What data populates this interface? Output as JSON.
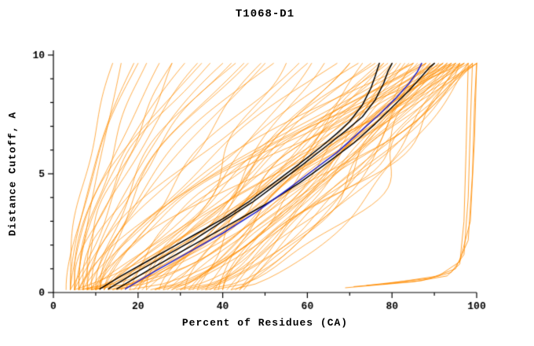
{
  "chart_data": {
    "type": "line",
    "title": "T1068-D1",
    "xlabel": "Percent of Residues (CA)",
    "ylabel": "Distance Cutoff, A",
    "xlim": [
      0,
      100
    ],
    "ylim": [
      0,
      10
    ],
    "x_ticks": [
      0,
      20,
      40,
      60,
      80,
      100
    ],
    "x_minor_step": 10,
    "y_ticks": [
      0,
      5,
      10
    ],
    "y_minor_step": 1,
    "grid": false,
    "legend": "none",
    "colors": {
      "ensemble": "#FF8C00",
      "highlight": "#000000",
      "reference": "#2222CC",
      "axis": "#000000"
    },
    "curve_y_start": 0.12,
    "curve_y_end": 9.65,
    "ensemble_curves": [
      [
        4,
        14
      ],
      [
        5,
        16
      ],
      [
        4,
        19
      ],
      [
        6,
        22
      ],
      [
        5,
        25
      ],
      [
        7,
        28
      ],
      [
        6,
        31
      ],
      [
        8,
        34
      ],
      [
        5,
        37
      ],
      [
        9,
        40
      ],
      [
        7,
        43
      ],
      [
        10,
        46
      ],
      [
        8,
        49
      ],
      [
        11,
        52
      ],
      [
        9,
        55
      ],
      [
        12,
        58
      ],
      [
        10,
        61
      ],
      [
        13,
        64
      ],
      [
        11,
        67
      ],
      [
        14,
        70
      ],
      [
        6,
        72
      ],
      [
        15,
        73
      ],
      [
        8,
        75
      ],
      [
        18,
        76
      ],
      [
        10,
        77
      ],
      [
        20,
        78
      ],
      [
        12,
        79
      ],
      [
        22,
        80
      ],
      [
        14,
        81
      ],
      [
        24,
        82
      ],
      [
        16,
        83
      ],
      [
        26,
        84
      ],
      [
        18,
        85
      ],
      [
        28,
        86
      ],
      [
        20,
        87
      ],
      [
        30,
        88
      ],
      [
        22,
        88
      ],
      [
        32,
        89
      ],
      [
        24,
        89
      ],
      [
        34,
        90
      ],
      [
        26,
        90
      ],
      [
        36,
        91
      ],
      [
        28,
        91
      ],
      [
        38,
        92
      ],
      [
        30,
        92
      ],
      [
        40,
        93
      ],
      [
        32,
        93
      ],
      [
        42,
        94
      ],
      [
        34,
        94
      ],
      [
        44,
        95
      ],
      [
        36,
        95
      ],
      [
        45,
        96
      ],
      [
        38,
        96
      ],
      [
        43,
        97
      ],
      [
        40,
        97
      ],
      [
        35,
        98
      ],
      [
        42,
        98
      ],
      [
        37,
        99
      ],
      [
        44,
        99
      ],
      [
        39,
        100
      ],
      [
        41,
        100
      ],
      [
        33,
        100
      ],
      [
        29,
        99
      ],
      [
        25,
        98
      ],
      [
        21,
        97
      ],
      [
        17,
        96
      ],
      [
        13,
        95
      ],
      [
        19,
        94
      ],
      [
        23,
        93
      ],
      [
        27,
        92
      ],
      [
        31,
        95
      ],
      [
        16,
        88
      ],
      [
        12,
        85
      ],
      [
        9,
        80
      ],
      [
        7,
        70
      ],
      [
        5,
        60
      ],
      [
        6,
        50
      ],
      [
        8,
        45
      ],
      [
        10,
        42
      ],
      [
        4,
        35
      ],
      [
        5,
        90
      ],
      [
        7,
        85
      ],
      [
        9,
        92
      ],
      [
        11,
        88
      ],
      [
        6,
        78
      ],
      [
        8,
        96
      ],
      [
        10,
        94
      ],
      [
        12,
        97
      ],
      [
        3,
        20
      ],
      [
        4,
        28
      ]
    ],
    "right_edge_curves": [
      [
        [
          69,
          0.2
        ],
        [
          85,
          0.45
        ],
        [
          93,
          0.7
        ],
        [
          96,
          1.2
        ],
        [
          97,
          3.0
        ],
        [
          97.5,
          6.0
        ],
        [
          98,
          9.65
        ]
      ],
      [
        [
          71,
          0.25
        ],
        [
          87,
          0.5
        ],
        [
          94,
          0.85
        ],
        [
          97,
          1.6
        ],
        [
          98,
          4.0
        ],
        [
          98.5,
          7.0
        ],
        [
          99,
          9.65
        ]
      ],
      [
        [
          74,
          0.3
        ],
        [
          89,
          0.6
        ],
        [
          95,
          1.0
        ],
        [
          98,
          2.2
        ],
        [
          99,
          5.0
        ],
        [
          99.5,
          8.0
        ],
        [
          100,
          9.65
        ]
      ],
      [
        [
          78,
          0.35
        ],
        [
          91,
          0.7
        ],
        [
          96,
          1.3
        ],
        [
          98.5,
          3.0
        ],
        [
          99.5,
          6.5
        ],
        [
          100,
          9.65
        ]
      ]
    ],
    "highlight_series": [
      {
        "name": "model-black-1",
        "color": "#000000",
        "points": [
          [
            11,
            0.15
          ],
          [
            16,
            0.7
          ],
          [
            22,
            1.3
          ],
          [
            28,
            1.9
          ],
          [
            34,
            2.5
          ],
          [
            40,
            3.1
          ],
          [
            46,
            3.8
          ],
          [
            52,
            4.6
          ],
          [
            58,
            5.4
          ],
          [
            63,
            6.1
          ],
          [
            67,
            6.7
          ],
          [
            70,
            7.2
          ],
          [
            73,
            7.9
          ],
          [
            75,
            8.6
          ],
          [
            76,
            9.1
          ],
          [
            77,
            9.65
          ]
        ]
      },
      {
        "name": "model-black-2",
        "color": "#000000",
        "points": [
          [
            13,
            0.15
          ],
          [
            19,
            0.8
          ],
          [
            26,
            1.5
          ],
          [
            33,
            2.2
          ],
          [
            40,
            3.0
          ],
          [
            47,
            3.8
          ],
          [
            53,
            4.6
          ],
          [
            59,
            5.4
          ],
          [
            64,
            6.1
          ],
          [
            69,
            6.8
          ],
          [
            73,
            7.4
          ],
          [
            76,
            8.1
          ],
          [
            78,
            8.8
          ],
          [
            79,
            9.3
          ],
          [
            80,
            9.65
          ]
        ]
      },
      {
        "name": "model-black-3",
        "color": "#000000",
        "points": [
          [
            15,
            0.15
          ],
          [
            23,
            1.0
          ],
          [
            32,
            1.9
          ],
          [
            41,
            2.8
          ],
          [
            50,
            3.7
          ],
          [
            58,
            4.6
          ],
          [
            65,
            5.5
          ],
          [
            71,
            6.3
          ],
          [
            76,
            7.1
          ],
          [
            80,
            7.8
          ],
          [
            84,
            8.5
          ],
          [
            87,
            9.1
          ],
          [
            89,
            9.5
          ],
          [
            90,
            9.65
          ]
        ]
      },
      {
        "name": "model-blue",
        "color": "#2222CC",
        "points": [
          [
            17,
            0.15
          ],
          [
            24,
            0.9
          ],
          [
            32,
            1.7
          ],
          [
            40,
            2.5
          ],
          [
            48,
            3.4
          ],
          [
            55,
            4.3
          ],
          [
            61,
            5.1
          ],
          [
            67,
            5.9
          ],
          [
            72,
            6.7
          ],
          [
            77,
            7.5
          ],
          [
            81,
            8.2
          ],
          [
            84,
            8.8
          ],
          [
            86,
            9.3
          ],
          [
            87,
            9.65
          ]
        ]
      }
    ]
  }
}
